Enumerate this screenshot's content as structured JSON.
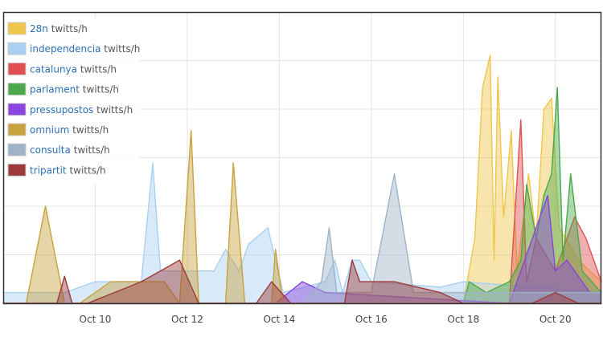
{
  "chart_data": {
    "type": "area",
    "x_unit": "date",
    "xlim": [
      "2014-10-08T00:00",
      "2014-10-21T00:00"
    ],
    "ylim": [
      0,
      270
    ],
    "grid": true,
    "legend_position": "top-left",
    "x_ticks": [
      {
        "label": "Oct 10",
        "at": "2014-10-10T00:00"
      },
      {
        "label": "Oct 12",
        "at": "2014-10-12T00:00"
      },
      {
        "label": "Oct 14",
        "at": "2014-10-14T00:00"
      },
      {
        "label": "Oct 16",
        "at": "2014-10-16T00:00"
      },
      {
        "label": "Oct 18",
        "at": "2014-10-18T00:00"
      },
      {
        "label": "Oct 20",
        "at": "2014-10-20T00:00"
      }
    ],
    "series": [
      {
        "name": "28n",
        "unit": "twitts/h",
        "color": "#efc64a",
        "points": [
          [
            "2014-10-08T00:00",
            0
          ],
          [
            "2014-10-18T00:00",
            0
          ],
          [
            "2014-10-18T06:00",
            60
          ],
          [
            "2014-10-18T10:00",
            200
          ],
          [
            "2014-10-18T14:00",
            230
          ],
          [
            "2014-10-18T16:00",
            40
          ],
          [
            "2014-10-18T18:00",
            210
          ],
          [
            "2014-10-18T21:00",
            80
          ],
          [
            "2014-10-19T01:00",
            160
          ],
          [
            "2014-10-19T04:00",
            30
          ],
          [
            "2014-10-19T10:00",
            120
          ],
          [
            "2014-10-19T14:00",
            60
          ],
          [
            "2014-10-19T18:00",
            180
          ],
          [
            "2014-10-19T22:00",
            190
          ],
          [
            "2014-10-20T02:00",
            70
          ],
          [
            "2014-10-20T12:00",
            40
          ],
          [
            "2014-10-21T00:00",
            20
          ]
        ]
      },
      {
        "name": "independencia",
        "unit": "twitts/h",
        "color": "#a9d0f0",
        "points": [
          [
            "2014-10-08T00:00",
            10
          ],
          [
            "2014-10-09T08:00",
            10
          ],
          [
            "2014-10-10T00:00",
            20
          ],
          [
            "2014-10-11T00:00",
            20
          ],
          [
            "2014-10-11T06:00",
            130
          ],
          [
            "2014-10-11T10:00",
            30
          ],
          [
            "2014-10-12T14:00",
            30
          ],
          [
            "2014-10-12T20:00",
            50
          ],
          [
            "2014-10-13T03:00",
            30
          ],
          [
            "2014-10-13T08:00",
            55
          ],
          [
            "2014-10-13T18:00",
            70
          ],
          [
            "2014-10-14T02:00",
            10
          ],
          [
            "2014-10-15T00:00",
            20
          ],
          [
            "2014-10-15T05:00",
            40
          ],
          [
            "2014-10-15T09:00",
            10
          ],
          [
            "2014-10-15T14:00",
            40
          ],
          [
            "2014-10-15T18:00",
            40
          ],
          [
            "2014-10-16T00:00",
            20
          ],
          [
            "2014-10-17T12:00",
            15
          ],
          [
            "2014-10-18T00:00",
            20
          ],
          [
            "2014-10-21T00:00",
            10
          ]
        ]
      },
      {
        "name": "catalunya",
        "unit": "twitts/h",
        "color": "#e05050",
        "points": [
          [
            "2014-10-08T00:00",
            0
          ],
          [
            "2014-10-19T00:00",
            0
          ],
          [
            "2014-10-19T06:00",
            170
          ],
          [
            "2014-10-19T09:00",
            20
          ],
          [
            "2014-10-19T14:00",
            60
          ],
          [
            "2014-10-20T00:00",
            30
          ],
          [
            "2014-10-20T10:00",
            80
          ],
          [
            "2014-10-20T16:00",
            60
          ],
          [
            "2014-10-21T00:00",
            20
          ]
        ]
      },
      {
        "name": "parlament",
        "unit": "twitts/h",
        "color": "#4ca84c",
        "points": [
          [
            "2014-10-08T00:00",
            0
          ],
          [
            "2014-10-18T00:00",
            0
          ],
          [
            "2014-10-18T03:00",
            20
          ],
          [
            "2014-10-18T12:00",
            10
          ],
          [
            "2014-10-19T00:00",
            20
          ],
          [
            "2014-10-19T06:00",
            40
          ],
          [
            "2014-10-19T09:00",
            110
          ],
          [
            "2014-10-19T14:00",
            60
          ],
          [
            "2014-10-19T18:00",
            100
          ],
          [
            "2014-10-19T22:00",
            120
          ],
          [
            "2014-10-20T01:00",
            200
          ],
          [
            "2014-10-20T04:00",
            40
          ],
          [
            "2014-10-20T08:00",
            120
          ],
          [
            "2014-10-20T14:00",
            30
          ],
          [
            "2014-10-21T00:00",
            10
          ]
        ]
      },
      {
        "name": "pressupostos",
        "unit": "twitts/h",
        "color": "#8a44e0",
        "points": [
          [
            "2014-10-08T00:00",
            0
          ],
          [
            "2014-10-13T22:00",
            0
          ],
          [
            "2014-10-14T12:00",
            20
          ],
          [
            "2014-10-15T00:00",
            10
          ],
          [
            "2014-10-19T00:00",
            0
          ],
          [
            "2014-10-19T20:00",
            100
          ],
          [
            "2014-10-20T00:00",
            30
          ],
          [
            "2014-10-20T06:00",
            40
          ],
          [
            "2014-10-20T18:00",
            10
          ],
          [
            "2014-10-21T00:00",
            10
          ]
        ]
      },
      {
        "name": "omnium",
        "unit": "twitts/h",
        "color": "#c8a23c",
        "points": [
          [
            "2014-10-08T00:00",
            0
          ],
          [
            "2014-10-08T12:00",
            0
          ],
          [
            "2014-10-08T22:00",
            90
          ],
          [
            "2014-10-09T08:00",
            0
          ],
          [
            "2014-10-09T16:00",
            0
          ],
          [
            "2014-10-10T08:00",
            20
          ],
          [
            "2014-10-11T12:00",
            20
          ],
          [
            "2014-10-11T20:00",
            0
          ],
          [
            "2014-10-12T02:00",
            160
          ],
          [
            "2014-10-12T06:00",
            0
          ],
          [
            "2014-10-12T20:00",
            0
          ],
          [
            "2014-10-13T00:00",
            130
          ],
          [
            "2014-10-13T06:00",
            0
          ],
          [
            "2014-10-13T20:00",
            0
          ],
          [
            "2014-10-13T22:00",
            50
          ],
          [
            "2014-10-14T02:00",
            0
          ],
          [
            "2014-10-14T04:00",
            0
          ],
          [
            "2014-10-21T00:00",
            0
          ]
        ]
      },
      {
        "name": "consulta",
        "unit": "twitts/h",
        "color": "#9fb3c8",
        "points": [
          [
            "2014-10-08T00:00",
            0
          ],
          [
            "2014-10-14T12:00",
            0
          ],
          [
            "2014-10-14T22:00",
            20
          ],
          [
            "2014-10-15T02:00",
            70
          ],
          [
            "2014-10-15T06:00",
            10
          ],
          [
            "2014-10-16T00:00",
            10
          ],
          [
            "2014-10-16T12:00",
            120
          ],
          [
            "2014-10-16T22:00",
            10
          ],
          [
            "2014-10-18T00:00",
            10
          ],
          [
            "2014-10-21T00:00",
            10
          ]
        ]
      },
      {
        "name": "tripartit",
        "unit": "twitts/h",
        "color": "#9c3a3a",
        "points": [
          [
            "2014-10-08T00:00",
            0
          ],
          [
            "2014-10-08T12:00",
            0
          ],
          [
            "2014-10-09T04:00",
            0
          ],
          [
            "2014-10-09T08:00",
            25
          ],
          [
            "2014-10-09T12:00",
            0
          ],
          [
            "2014-10-09T20:00",
            0
          ],
          [
            "2014-10-11T00:00",
            20
          ],
          [
            "2014-10-11T20:00",
            40
          ],
          [
            "2014-10-12T06:00",
            0
          ],
          [
            "2014-10-13T12:00",
            0
          ],
          [
            "2014-10-13T20:00",
            20
          ],
          [
            "2014-10-14T06:00",
            0
          ],
          [
            "2014-10-15T10:00",
            0
          ],
          [
            "2014-10-15T14:00",
            40
          ],
          [
            "2014-10-15T18:00",
            20
          ],
          [
            "2014-10-16T12:00",
            20
          ],
          [
            "2014-10-17T12:00",
            10
          ],
          [
            "2014-10-18T00:00",
            0
          ],
          [
            "2014-10-19T12:00",
            0
          ],
          [
            "2014-10-20T00:00",
            10
          ],
          [
            "2014-10-20T12:00",
            0
          ],
          [
            "2014-10-21T00:00",
            0
          ]
        ]
      }
    ]
  }
}
